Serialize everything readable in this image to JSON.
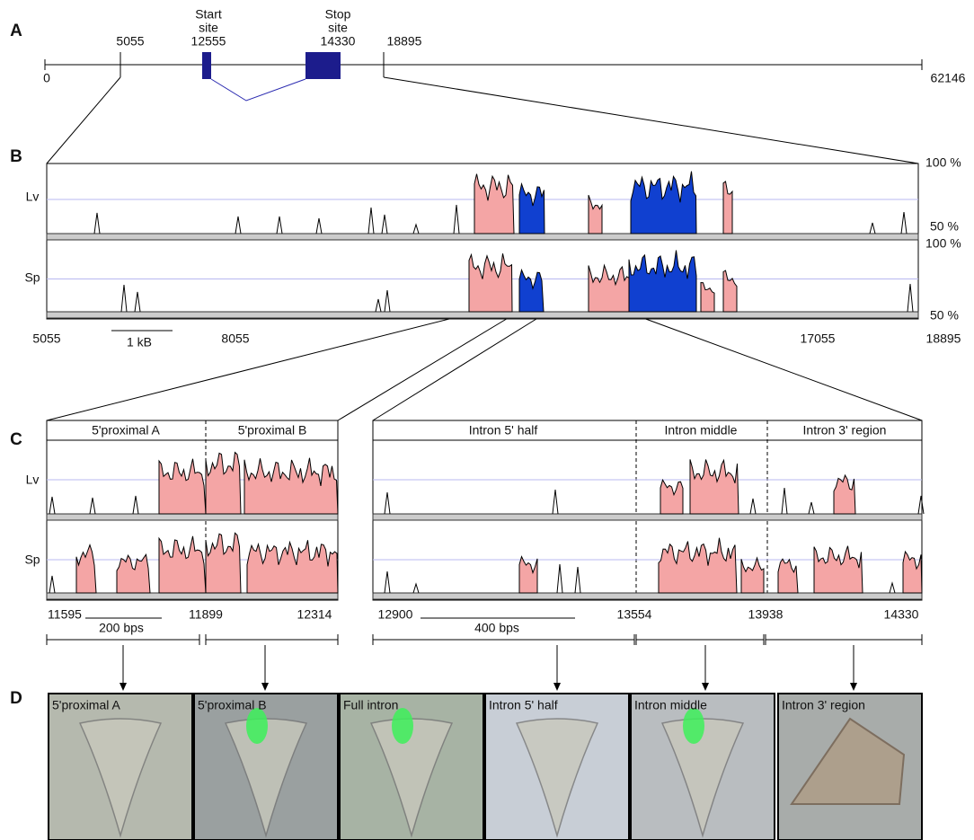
{
  "panel_labels": [
    "A",
    "B",
    "C",
    "D"
  ],
  "gene_map": {
    "start": 0,
    "end": 62146,
    "region_start": 5055,
    "region_end": 18895,
    "start_site": {
      "label_lines": [
        "Start",
        "site"
      ],
      "position": 12555
    },
    "stop_site": {
      "label_lines": [
        "Stop",
        "site"
      ],
      "position": 14330
    }
  },
  "conservation": {
    "species": [
      "Lv",
      "Sp"
    ],
    "max_label": "100 %",
    "min_label": "50 %",
    "axis": [
      5055,
      8055,
      17055,
      18895
    ],
    "scale_bar": "1 kB"
  },
  "detail_left": {
    "regions": [
      "5'proximal A",
      "5'proximal B"
    ],
    "species": [
      "Lv",
      "Sp"
    ],
    "axis": [
      11595,
      11899,
      12314
    ],
    "scale_bar": "200 bps"
  },
  "detail_right": {
    "regions": [
      "Intron 5' half",
      "Intron middle",
      "Intron 3' region"
    ],
    "axis": [
      12900,
      13554,
      13938,
      14330
    ],
    "scale_bar": "400 bps"
  },
  "images": [
    "5'proximal A",
    "5'proximal B",
    "Full intron",
    "Intron 5' half",
    "Intron middle",
    "Intron 3' region"
  ]
}
